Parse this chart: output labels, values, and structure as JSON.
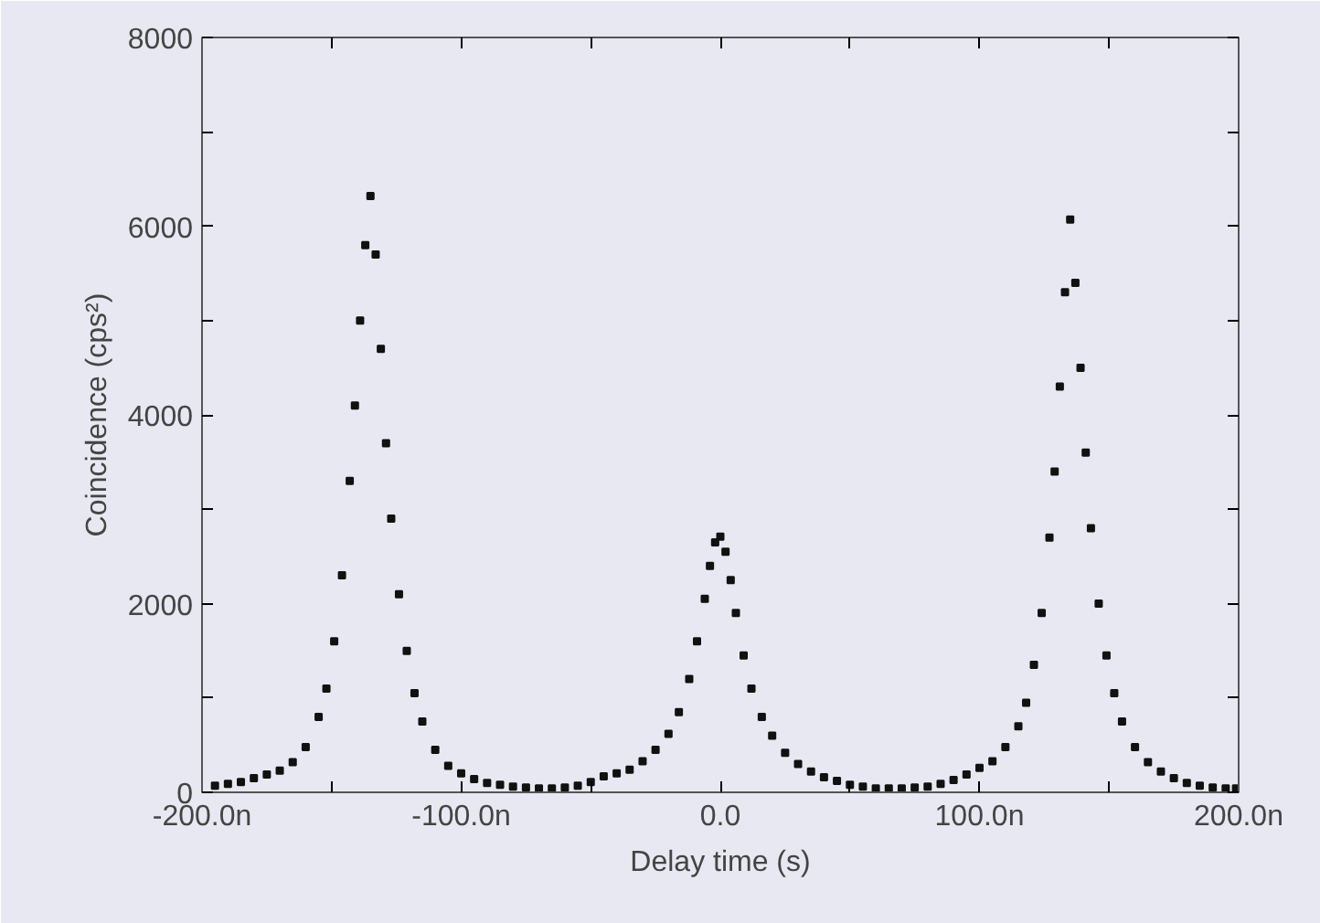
{
  "chart_data": {
    "type": "scatter",
    "xlabel": "Delay time (s)",
    "ylabel": "Coincidence (cps²)",
    "x": [
      -195,
      -190,
      -185,
      -180,
      -175,
      -170,
      -165,
      -160,
      -155,
      -152,
      -149,
      -146,
      -143,
      -141,
      -139,
      -137,
      -135,
      -133,
      -131,
      -129,
      -127,
      -124,
      -121,
      -118,
      -115,
      -110,
      -105,
      -100,
      -95,
      -90,
      -85,
      -80,
      -75,
      -70,
      -65,
      -60,
      -55,
      -50,
      -45,
      -40,
      -35,
      -30,
      -25,
      -20,
      -16,
      -12,
      -9,
      -6,
      -4,
      -2,
      0,
      2,
      4,
      6,
      9,
      12,
      16,
      20,
      25,
      30,
      35,
      40,
      45,
      50,
      55,
      60,
      65,
      70,
      75,
      80,
      85,
      90,
      95,
      100,
      105,
      110,
      115,
      118,
      121,
      124,
      127,
      129,
      131,
      133,
      135,
      137,
      139,
      141,
      143,
      146,
      149,
      152,
      155,
      160,
      165,
      170,
      175,
      180,
      185,
      190,
      195,
      199
    ],
    "series": [
      {
        "color": "#111111",
        "values": [
          70,
          90,
          110,
          150,
          190,
          230,
          320,
          480,
          800,
          1100,
          1600,
          2300,
          3300,
          4100,
          5000,
          5800,
          6320,
          5700,
          4700,
          3700,
          2900,
          2100,
          1500,
          1050,
          750,
          450,
          280,
          200,
          140,
          100,
          80,
          60,
          50,
          40,
          40,
          50,
          70,
          110,
          170,
          200,
          240,
          330,
          450,
          620,
          850,
          1200,
          1600,
          2050,
          2400,
          2650,
          2710,
          2550,
          2250,
          1900,
          1450,
          1100,
          800,
          600,
          420,
          300,
          220,
          160,
          120,
          80,
          60,
          40,
          40,
          40,
          50,
          60,
          90,
          130,
          190,
          260,
          330,
          480,
          700,
          950,
          1350,
          1900,
          2700,
          3400,
          4300,
          5300,
          6070,
          5400,
          4500,
          3600,
          2800,
          2000,
          1450,
          1050,
          750,
          480,
          320,
          220,
          150,
          100,
          70,
          50,
          40,
          40
        ]
      }
    ],
    "marker": "square",
    "xlim": [
      -200,
      200
    ],
    "ylim": [
      0,
      8000
    ],
    "xticks": [
      {
        "value": -200,
        "label": "-200.0n"
      },
      {
        "value": -150,
        "label": null
      },
      {
        "value": -100,
        "label": "-100.0n"
      },
      {
        "value": -50,
        "label": null
      },
      {
        "value": 0,
        "label": "0.0"
      },
      {
        "value": 50,
        "label": null
      },
      {
        "value": 100,
        "label": "100.0n"
      },
      {
        "value": 150,
        "label": null
      },
      {
        "value": 200,
        "label": "200.0n"
      }
    ],
    "yticks": [
      0,
      {
        "value": 1000,
        "label": null
      },
      2000,
      {
        "value": 3000,
        "label": null
      },
      4000,
      {
        "value": 5000,
        "label": null
      },
      6000,
      {
        "value": 7000,
        "label": null
      },
      8000
    ],
    "grid": false
  }
}
